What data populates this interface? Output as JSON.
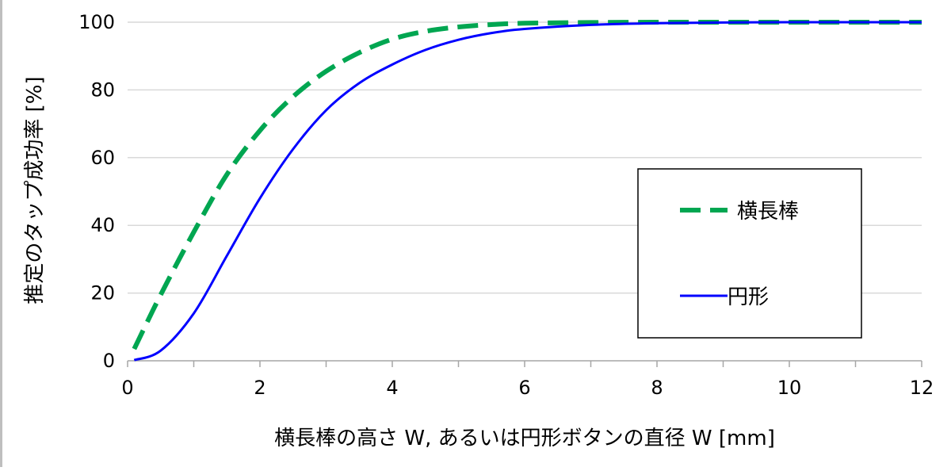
{
  "chart_data": {
    "type": "line",
    "xlabel": "横長棒の高さ W, あるいは円形ボタンの直径 W [mm]",
    "ylabel": "推定のタップ成功率 [%]",
    "xlim": [
      0,
      12
    ],
    "ylim": [
      0,
      100
    ],
    "x_ticks": [
      0,
      2,
      4,
      6,
      8,
      10,
      12
    ],
    "y_ticks": [
      0,
      20,
      40,
      60,
      80,
      100
    ],
    "grid": "horizontal",
    "legend_position": "right",
    "series": [
      {
        "name": "横長棒",
        "color": "#00A651",
        "style": "dashed",
        "x": [
          0.1,
          0.5,
          1.0,
          1.5,
          2.0,
          2.5,
          3.0,
          3.5,
          4.0,
          4.5,
          5.0,
          5.5,
          6.0,
          7.0,
          8.0,
          9.0,
          10.0,
          11.0,
          12.0
        ],
        "y": [
          3.5,
          19.5,
          38.0,
          55.0,
          68.0,
          78.0,
          85.5,
          91.0,
          95.0,
          97.3,
          98.6,
          99.3,
          99.7,
          99.9,
          100.0,
          100.0,
          100.0,
          100.0,
          100.0
        ]
      },
      {
        "name": "円形",
        "color": "#0000FF",
        "style": "solid",
        "x": [
          0.1,
          0.5,
          1.0,
          1.5,
          2.0,
          2.5,
          3.0,
          3.5,
          4.0,
          4.5,
          5.0,
          5.5,
          6.0,
          7.0,
          8.0,
          9.0,
          10.0,
          11.0,
          12.0
        ],
        "y": [
          0.2,
          3.0,
          14.0,
          31.0,
          48.0,
          62.5,
          74.0,
          82.0,
          87.5,
          91.8,
          94.8,
          96.8,
          98.0,
          99.2,
          99.7,
          99.9,
          100.0,
          100.0,
          100.0
        ]
      }
    ]
  }
}
